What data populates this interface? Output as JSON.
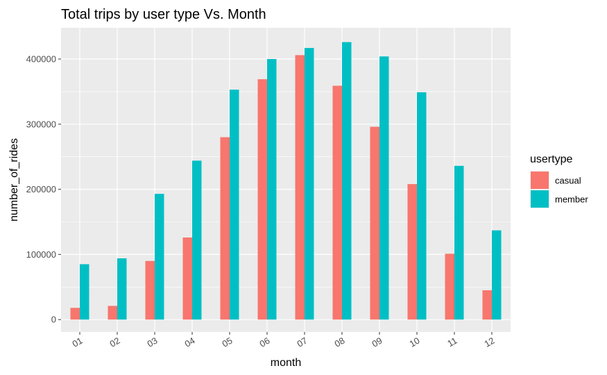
{
  "chart_data": {
    "type": "bar",
    "title": "Total trips by user type Vs. Month",
    "xlabel": "month",
    "ylabel": "number_of_rides",
    "categories": [
      "01",
      "02",
      "03",
      "04",
      "05",
      "06",
      "07",
      "08",
      "09",
      "10",
      "11",
      "12"
    ],
    "series": [
      {
        "name": "casual",
        "color": "#F8766D",
        "values": [
          18000,
          21000,
          90000,
          126000,
          280000,
          369000,
          406000,
          359000,
          296000,
          208000,
          101000,
          45000
        ]
      },
      {
        "name": "member",
        "color": "#00BFC4",
        "values": [
          85000,
          94000,
          193000,
          244000,
          353000,
          400000,
          417000,
          426000,
          404000,
          349000,
          236000,
          137000
        ]
      }
    ],
    "ylim": [
      -19000,
      448000
    ],
    "yticks": [
      0,
      100000,
      200000,
      300000,
      400000
    ],
    "ytick_labels": [
      "0",
      "100000",
      "200000",
      "300000",
      "400000"
    ],
    "grid": true,
    "panel_background": "#EBEBEB",
    "legend": {
      "title": "usertype",
      "position": "right"
    }
  }
}
